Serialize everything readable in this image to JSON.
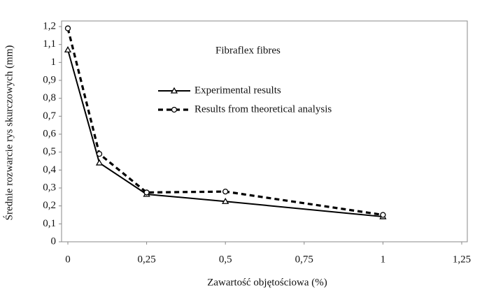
{
  "chart_data": {
    "type": "line",
    "annotation": "Fibraflex fibres",
    "xlabel": "Zawartość objętościowa (%)",
    "ylabel": "Średnie rozwarcie rys skurczowych (mm)",
    "x": [
      0,
      0.1,
      0.25,
      0.5,
      1
    ],
    "series": [
      {
        "name": "Experimental results",
        "color": "#000000",
        "marker": "triangle",
        "dash": false,
        "values": [
          1.07,
          0.44,
          0.265,
          0.225,
          0.14
        ]
      },
      {
        "name": "Results from theoretical analysis",
        "color": "#000000",
        "marker": "circle",
        "dash": true,
        "values": [
          1.19,
          0.49,
          0.275,
          0.28,
          0.15
        ]
      }
    ],
    "xlim": [
      0,
      1.25
    ],
    "xticks": [
      0,
      {
        "value": 0.25,
        "label": "0,25"
      },
      {
        "value": 0.5,
        "label": "0,5"
      },
      {
        "value": 0.75,
        "label": "0,75"
      },
      1,
      {
        "value": 1.25,
        "label": "1,25"
      }
    ],
    "ylim": [
      0,
      1.2
    ],
    "yticks": [
      0,
      {
        "value": 0.1,
        "label": "0,1"
      },
      {
        "value": 0.2,
        "label": "0,2"
      },
      {
        "value": 0.3,
        "label": "0,3"
      },
      {
        "value": 0.4,
        "label": "0,4"
      },
      {
        "value": 0.5,
        "label": "0,5"
      },
      {
        "value": 0.6,
        "label": "0,6"
      },
      {
        "value": 0.7,
        "label": "0,7"
      },
      {
        "value": 0.8,
        "label": "0,8"
      },
      {
        "value": 0.9,
        "label": "0,9"
      },
      1,
      {
        "value": 1.1,
        "label": "1,1"
      },
      {
        "value": 1.2,
        "label": "1,2"
      }
    ],
    "grid": false
  }
}
